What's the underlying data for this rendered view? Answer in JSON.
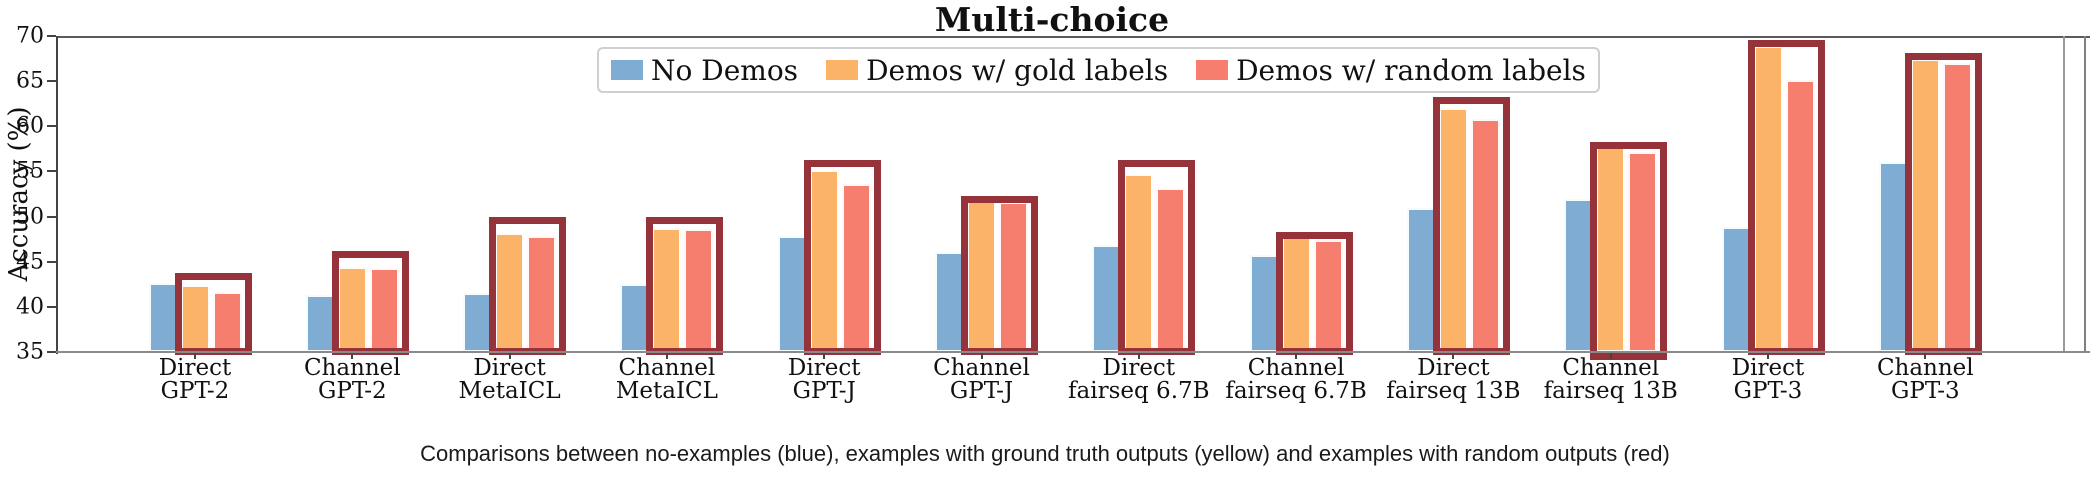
{
  "chart_data": {
    "type": "bar",
    "title": "Multi-choice",
    "ylabel": "Accuracy (%)",
    "ylim": [
      35,
      70
    ],
    "yticks": [
      35,
      40,
      45,
      50,
      55,
      60,
      65,
      70
    ],
    "grid": false,
    "legend_position": "upper center",
    "categories": [
      {
        "line1": "Direct",
        "line2": "GPT-2"
      },
      {
        "line1": "Channel",
        "line2": "GPT-2"
      },
      {
        "line1": "Direct",
        "line2": "MetaICL"
      },
      {
        "line1": "Channel",
        "line2": "MetaICL"
      },
      {
        "line1": "Direct",
        "line2": "GPT-J"
      },
      {
        "line1": "Channel",
        "line2": "GPT-J"
      },
      {
        "line1": "Direct",
        "line2": "fairseq 6.7B"
      },
      {
        "line1": "Channel",
        "line2": "fairseq 6.7B"
      },
      {
        "line1": "Direct",
        "line2": "fairseq 13B"
      },
      {
        "line1": "Channel",
        "line2": "fairseq 13B"
      },
      {
        "line1": "Direct",
        "line2": "GPT-3"
      },
      {
        "line1": "Channel",
        "line2": "GPT-3"
      }
    ],
    "series": [
      {
        "name": "No Demos",
        "color": "#7FACD2",
        "values": [
          42.6,
          41.3,
          41.5,
          42.5,
          47.8,
          46.1,
          46.9,
          45.8,
          50.9,
          51.9,
          48.8,
          56.1
        ]
      },
      {
        "name": "Demos w/ gold labels",
        "color": "#FBB367",
        "values": [
          42.4,
          44.4,
          48.2,
          48.7,
          55.2,
          51.8,
          54.7,
          48.0,
          62.0,
          57.7,
          68.9,
          67.4
        ]
      },
      {
        "name": "Demos w/ random labels",
        "color": "#F57E6E",
        "values": [
          41.6,
          44.3,
          47.8,
          48.6,
          53.6,
          51.6,
          53.2,
          47.4,
          60.8,
          57.1,
          65.1,
          67.0
        ]
      }
    ],
    "highlight_boxes": {
      "color": "#96333A",
      "tops": [
        43.7,
        46.2,
        49.9,
        49.9,
        56.3,
        52.3,
        56.3,
        48.3,
        63.3,
        58.3,
        69.6,
        68.1
      ]
    }
  },
  "caption": "Comparisons between no-examples (blue), examples with ground truth outputs (yellow) and examples with random outputs (red)"
}
